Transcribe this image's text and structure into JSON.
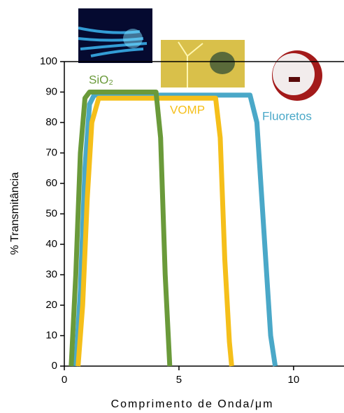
{
  "chart_data": {
    "type": "line",
    "x_label": "Comprimento de Onda/μm",
    "y_label": "% Transmitância",
    "xlim": [
      0,
      12.2
    ],
    "ylim": [
      0,
      100
    ],
    "xticks": [
      0,
      5,
      10
    ],
    "yticks": [
      0,
      10,
      20,
      30,
      40,
      50,
      60,
      70,
      80,
      90,
      100
    ],
    "series": [
      {
        "name": "Fluoretos",
        "color": "#4aa8c8",
        "x": [
          0.5,
          0.7,
          0.9,
          1.1,
          1.3,
          8.1,
          8.4,
          8.7,
          9.0,
          9.2
        ],
        "values": [
          0,
          25,
          65,
          86,
          89,
          89,
          80,
          45,
          10,
          0
        ]
      },
      {
        "name": "VOMP",
        "color": "#f5bf1a",
        "x": [
          0.6,
          0.8,
          1.0,
          1.2,
          1.5,
          6.6,
          6.8,
          7.0,
          7.2,
          7.3
        ],
        "values": [
          0,
          20,
          55,
          80,
          88,
          88,
          75,
          35,
          8,
          0
        ]
      },
      {
        "name": "SiO₂",
        "color": "#6a9a3a",
        "x": [
          0.3,
          0.5,
          0.7,
          0.9,
          1.1,
          4.0,
          4.2,
          4.4,
          4.6
        ],
        "values": [
          0,
          30,
          70,
          88,
          90,
          90,
          75,
          30,
          0
        ]
      }
    ]
  }
}
